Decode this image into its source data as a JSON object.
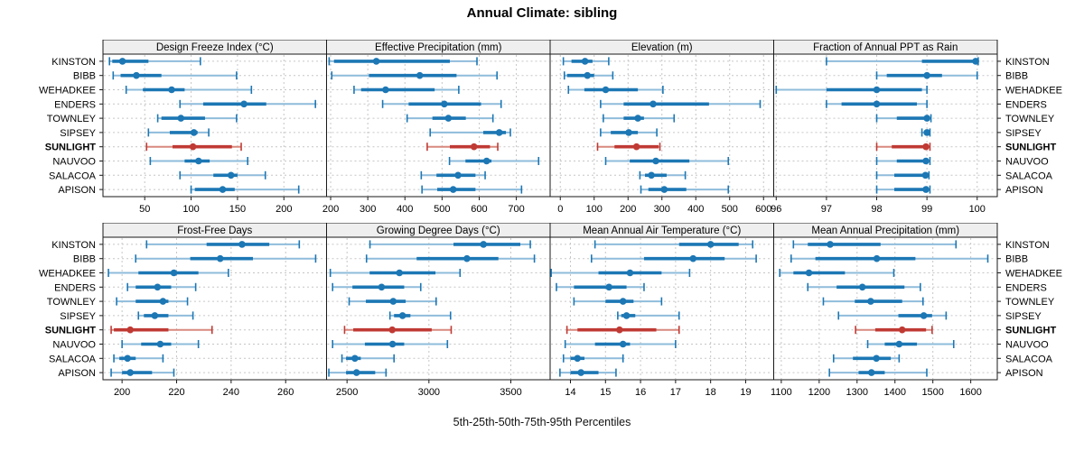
{
  "chart_data": {
    "type": "dot-interval",
    "title": "Annual Climate: sibling",
    "footer_label": "5th-25th-50th-75th-95th Percentiles",
    "percentile_labels": [
      "5th",
      "25th",
      "50th",
      "75th",
      "95th"
    ],
    "layout": {
      "rows": 2,
      "cols": 4,
      "grid": "dashed",
      "legend": "none"
    },
    "sites": [
      "KINSTON",
      "BIBB",
      "WEHADKEE",
      "ENDERS",
      "TOWNLEY",
      "SIPSEY",
      "SUNLIGHT",
      "NAUVOO",
      "SALACOA",
      "APISON"
    ],
    "highlight_site": "SUNLIGHT",
    "colors": {
      "normal": "#1c77b4",
      "normal_light": "#8fbcdb",
      "highlight": "#c03a34",
      "highlight_light": "#d8897f",
      "strip_bg": "#efefef",
      "grid": "#c6c6c6",
      "border": "#1a1a1a",
      "text": "#000000"
    },
    "panels": [
      {
        "title": "Design Freeze Index (°C)",
        "xlim": [
          5,
          246
        ],
        "ticks": [
          50,
          100,
          150,
          200
        ],
        "series": [
          [
            12,
            15,
            26,
            54,
            110
          ],
          [
            16,
            24,
            41,
            68,
            149
          ],
          [
            30,
            48,
            79,
            93,
            165
          ],
          [
            88,
            113,
            157,
            181,
            234
          ],
          [
            64,
            68,
            89,
            115,
            149
          ],
          [
            54,
            77,
            103,
            107,
            119
          ],
          [
            52,
            80,
            102,
            144,
            154
          ],
          [
            56,
            93,
            108,
            120,
            161
          ],
          [
            88,
            124,
            143,
            150,
            180
          ],
          [
            100,
            104,
            134,
            147,
            216
          ]
        ]
      },
      {
        "title": "Effective Precipitation (mm)",
        "xlim": [
          189,
          791
        ],
        "ticks": [
          200,
          300,
          400,
          500,
          600,
          700
        ],
        "series": [
          [
            196,
            209,
            323,
            521,
            594
          ],
          [
            203,
            303,
            440,
            539,
            648
          ],
          [
            263,
            282,
            348,
            480,
            545
          ],
          [
            340,
            410,
            506,
            605,
            659
          ],
          [
            406,
            474,
            517,
            564,
            637
          ],
          [
            468,
            611,
            654,
            672,
            684
          ],
          [
            460,
            521,
            586,
            629,
            650
          ],
          [
            520,
            563,
            620,
            633,
            760
          ],
          [
            444,
            485,
            543,
            590,
            616
          ],
          [
            446,
            487,
            530,
            590,
            714
          ]
        ]
      },
      {
        "title": "Elevation (m)",
        "xlim": [
          -30,
          630
        ],
        "ticks": [
          0,
          100,
          200,
          300,
          400,
          500,
          600
        ],
        "series": [
          [
            9,
            33,
            73,
            95,
            143
          ],
          [
            12,
            20,
            80,
            100,
            155
          ],
          [
            24,
            71,
            134,
            229,
            303
          ],
          [
            119,
            187,
            274,
            439,
            590
          ],
          [
            127,
            187,
            229,
            247,
            336
          ],
          [
            119,
            149,
            202,
            229,
            285
          ],
          [
            110,
            160,
            225,
            290,
            294
          ],
          [
            134,
            205,
            282,
            381,
            496
          ],
          [
            235,
            250,
            269,
            314,
            369
          ],
          [
            238,
            260,
            307,
            372,
            496
          ]
        ]
      },
      {
        "title": "Fraction of Annual PPT as Rain",
        "xlim": [
          95.95,
          100.4
        ],
        "ticks": [
          96,
          97,
          98,
          99,
          100
        ],
        "series": [
          [
            97,
            98.9,
            99.97,
            100,
            100.02
          ],
          [
            98,
            98.2,
            99,
            99.3,
            100
          ],
          [
            96,
            97,
            98,
            98.9,
            99
          ],
          [
            97,
            97.3,
            98,
            98.8,
            99
          ],
          [
            98,
            98.4,
            99,
            99.04,
            99.08
          ],
          [
            98.9,
            98.95,
            99,
            99.03,
            99.06
          ],
          [
            98,
            98.3,
            98.98,
            99.02,
            99.06
          ],
          [
            98,
            98.4,
            98.98,
            99.02,
            99.06
          ],
          [
            98,
            98.35,
            98.97,
            99,
            99.04
          ],
          [
            98,
            98.35,
            98.98,
            99.02,
            99.06
          ]
        ]
      },
      {
        "title": "Frost-Free Days",
        "xlim": [
          193,
          275
        ],
        "ticks": [
          200,
          220,
          240,
          260
        ],
        "series": [
          [
            209,
            231,
            244,
            254,
            265
          ],
          [
            205,
            225,
            236,
            248,
            271
          ],
          [
            195,
            206,
            219,
            228,
            239
          ],
          [
            202,
            205,
            213,
            218,
            227
          ],
          [
            198,
            205,
            215,
            217,
            224
          ],
          [
            206,
            208,
            212,
            217,
            226
          ],
          [
            196,
            197,
            203,
            217,
            233
          ],
          [
            200,
            207,
            214,
            218,
            228
          ],
          [
            197,
            199,
            202,
            205,
            215
          ],
          [
            196,
            200,
            203,
            211,
            219
          ]
        ]
      },
      {
        "title": "Growing Degree Days (°C)",
        "xlim": [
          2375,
          3740
        ],
        "ticks": [
          2500,
          3000,
          3500
        ],
        "series": [
          [
            2640,
            3150,
            3333,
            3558,
            3619
          ],
          [
            2619,
            2925,
            3232,
            3424,
            3644
          ],
          [
            2398,
            2638,
            2820,
            3040,
            3190
          ],
          [
            2412,
            2533,
            2711,
            2849,
            2950
          ],
          [
            2513,
            2615,
            2782,
            2858,
            3044
          ],
          [
            2762,
            2787,
            2839,
            2887,
            3132
          ],
          [
            2485,
            2538,
            2776,
            3017,
            3136
          ],
          [
            2412,
            2609,
            2778,
            2849,
            3113
          ],
          [
            2469,
            2494,
            2548,
            2584,
            2787
          ],
          [
            2389,
            2494,
            2558,
            2672,
            2738
          ]
        ]
      },
      {
        "title": "Mean Annual Air Temperature (°C)",
        "xlim": [
          13.42,
          19.8
        ],
        "ticks": [
          14,
          15,
          16,
          17,
          18,
          19
        ],
        "series": [
          [
            14.7,
            17.1,
            18.0,
            18.8,
            19.2
          ],
          [
            14.6,
            16.1,
            17.5,
            18.4,
            19.3
          ],
          [
            13.45,
            14.8,
            15.7,
            16.6,
            17.4
          ],
          [
            13.6,
            14.1,
            15.1,
            15.6,
            16.1
          ],
          [
            14.1,
            15.0,
            15.5,
            15.8,
            16.6
          ],
          [
            15.35,
            15.45,
            15.6,
            15.85,
            17.1
          ],
          [
            13.9,
            14.2,
            15.4,
            16.45,
            17.1
          ],
          [
            13.85,
            14.7,
            15.5,
            15.7,
            17.0
          ],
          [
            13.8,
            14.0,
            14.2,
            14.4,
            15.5
          ],
          [
            13.7,
            14.0,
            14.3,
            14.8,
            15.3
          ]
        ]
      },
      {
        "title": "Mean Annual Precipitation (mm)",
        "xlim": [
          1080,
          1670
        ],
        "ticks": [
          1100,
          1200,
          1300,
          1400,
          1500,
          1600
        ],
        "series": [
          [
            1132,
            1170,
            1229,
            1362,
            1561
          ],
          [
            1126,
            1190,
            1352,
            1454,
            1645
          ],
          [
            1096,
            1132,
            1173,
            1268,
            1397
          ],
          [
            1170,
            1246,
            1314,
            1425,
            1467
          ],
          [
            1211,
            1294,
            1336,
            1419,
            1474
          ],
          [
            1251,
            1409,
            1476,
            1498,
            1535
          ],
          [
            1296,
            1348,
            1419,
            1482,
            1498
          ],
          [
            1328,
            1373,
            1411,
            1458,
            1555
          ],
          [
            1238,
            1289,
            1351,
            1389,
            1411
          ],
          [
            1227,
            1304,
            1338,
            1373,
            1484
          ]
        ]
      }
    ]
  }
}
